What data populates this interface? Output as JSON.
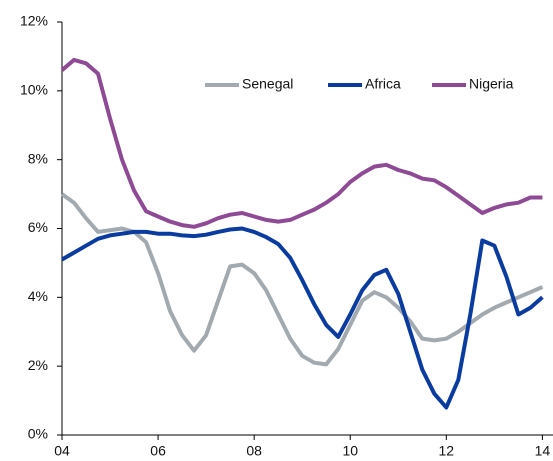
{
  "chart_data": {
    "type": "line",
    "x": [
      4,
      4.25,
      4.5,
      4.75,
      5,
      5.25,
      5.5,
      5.75,
      6,
      6.25,
      6.5,
      6.75,
      7,
      7.25,
      7.5,
      7.75,
      8,
      8.25,
      8.5,
      8.75,
      9,
      9.25,
      9.5,
      9.75,
      10,
      10.25,
      10.5,
      10.75,
      11,
      11.25,
      11.5,
      11.75,
      12,
      12.25,
      12.5,
      12.75,
      13,
      13.25,
      13.5,
      13.75,
      14
    ],
    "series": [
      {
        "name": "Senegal",
        "color": "#a2aaaf",
        "values": [
          7.0,
          6.75,
          6.3,
          5.9,
          5.95,
          6.0,
          5.9,
          5.6,
          4.7,
          3.6,
          2.9,
          2.45,
          2.9,
          3.9,
          4.9,
          4.95,
          4.7,
          4.2,
          3.5,
          2.8,
          2.3,
          2.1,
          2.05,
          2.5,
          3.2,
          3.9,
          4.15,
          4.0,
          3.7,
          3.3,
          2.8,
          2.75,
          2.8,
          3.0,
          3.25,
          3.5,
          3.7,
          3.85,
          4.0,
          4.15,
          4.3
        ]
      },
      {
        "name": "Africa",
        "color": "#0a3ca0",
        "values": [
          5.1,
          5.3,
          5.5,
          5.7,
          5.8,
          5.85,
          5.9,
          5.9,
          5.85,
          5.85,
          5.8,
          5.78,
          5.82,
          5.9,
          5.97,
          6.0,
          5.9,
          5.75,
          5.55,
          5.15,
          4.5,
          3.8,
          3.2,
          2.85,
          3.5,
          4.2,
          4.65,
          4.8,
          4.1,
          3.0,
          1.9,
          1.2,
          0.8,
          1.6,
          3.5,
          5.65,
          5.5,
          4.6,
          3.5,
          3.7,
          4.0
        ]
      },
      {
        "name": "Nigeria",
        "color": "#8e4a94",
        "values": [
          10.6,
          10.9,
          10.8,
          10.5,
          9.2,
          8.0,
          7.1,
          6.5,
          6.35,
          6.2,
          6.1,
          6.05,
          6.15,
          6.3,
          6.4,
          6.45,
          6.35,
          6.25,
          6.2,
          6.25,
          6.4,
          6.55,
          6.75,
          7.0,
          7.35,
          7.6,
          7.8,
          7.85,
          7.7,
          7.6,
          7.45,
          7.4,
          7.2,
          6.95,
          6.7,
          6.45,
          6.6,
          6.7,
          6.75,
          6.9,
          6.9
        ]
      }
    ],
    "xlim": [
      4,
      14.2
    ],
    "xticks": [
      {
        "value": 4,
        "label": "04"
      },
      {
        "value": 6,
        "label": "06"
      },
      {
        "value": 8,
        "label": "08"
      },
      {
        "value": 10,
        "label": "10"
      },
      {
        "value": 12,
        "label": "12"
      },
      {
        "value": 14,
        "label": "14"
      }
    ],
    "ylim": [
      0,
      12
    ],
    "yticks": [
      {
        "value": 0,
        "label": "0%"
      },
      {
        "value": 2,
        "label": "2%"
      },
      {
        "value": 4,
        "label": "4%"
      },
      {
        "value": 6,
        "label": "6%"
      },
      {
        "value": 8,
        "label": "8%"
      },
      {
        "value": 10,
        "label": "10%"
      },
      {
        "value": 12,
        "label": "12%"
      }
    ],
    "grid": false,
    "legend": "top-right"
  }
}
